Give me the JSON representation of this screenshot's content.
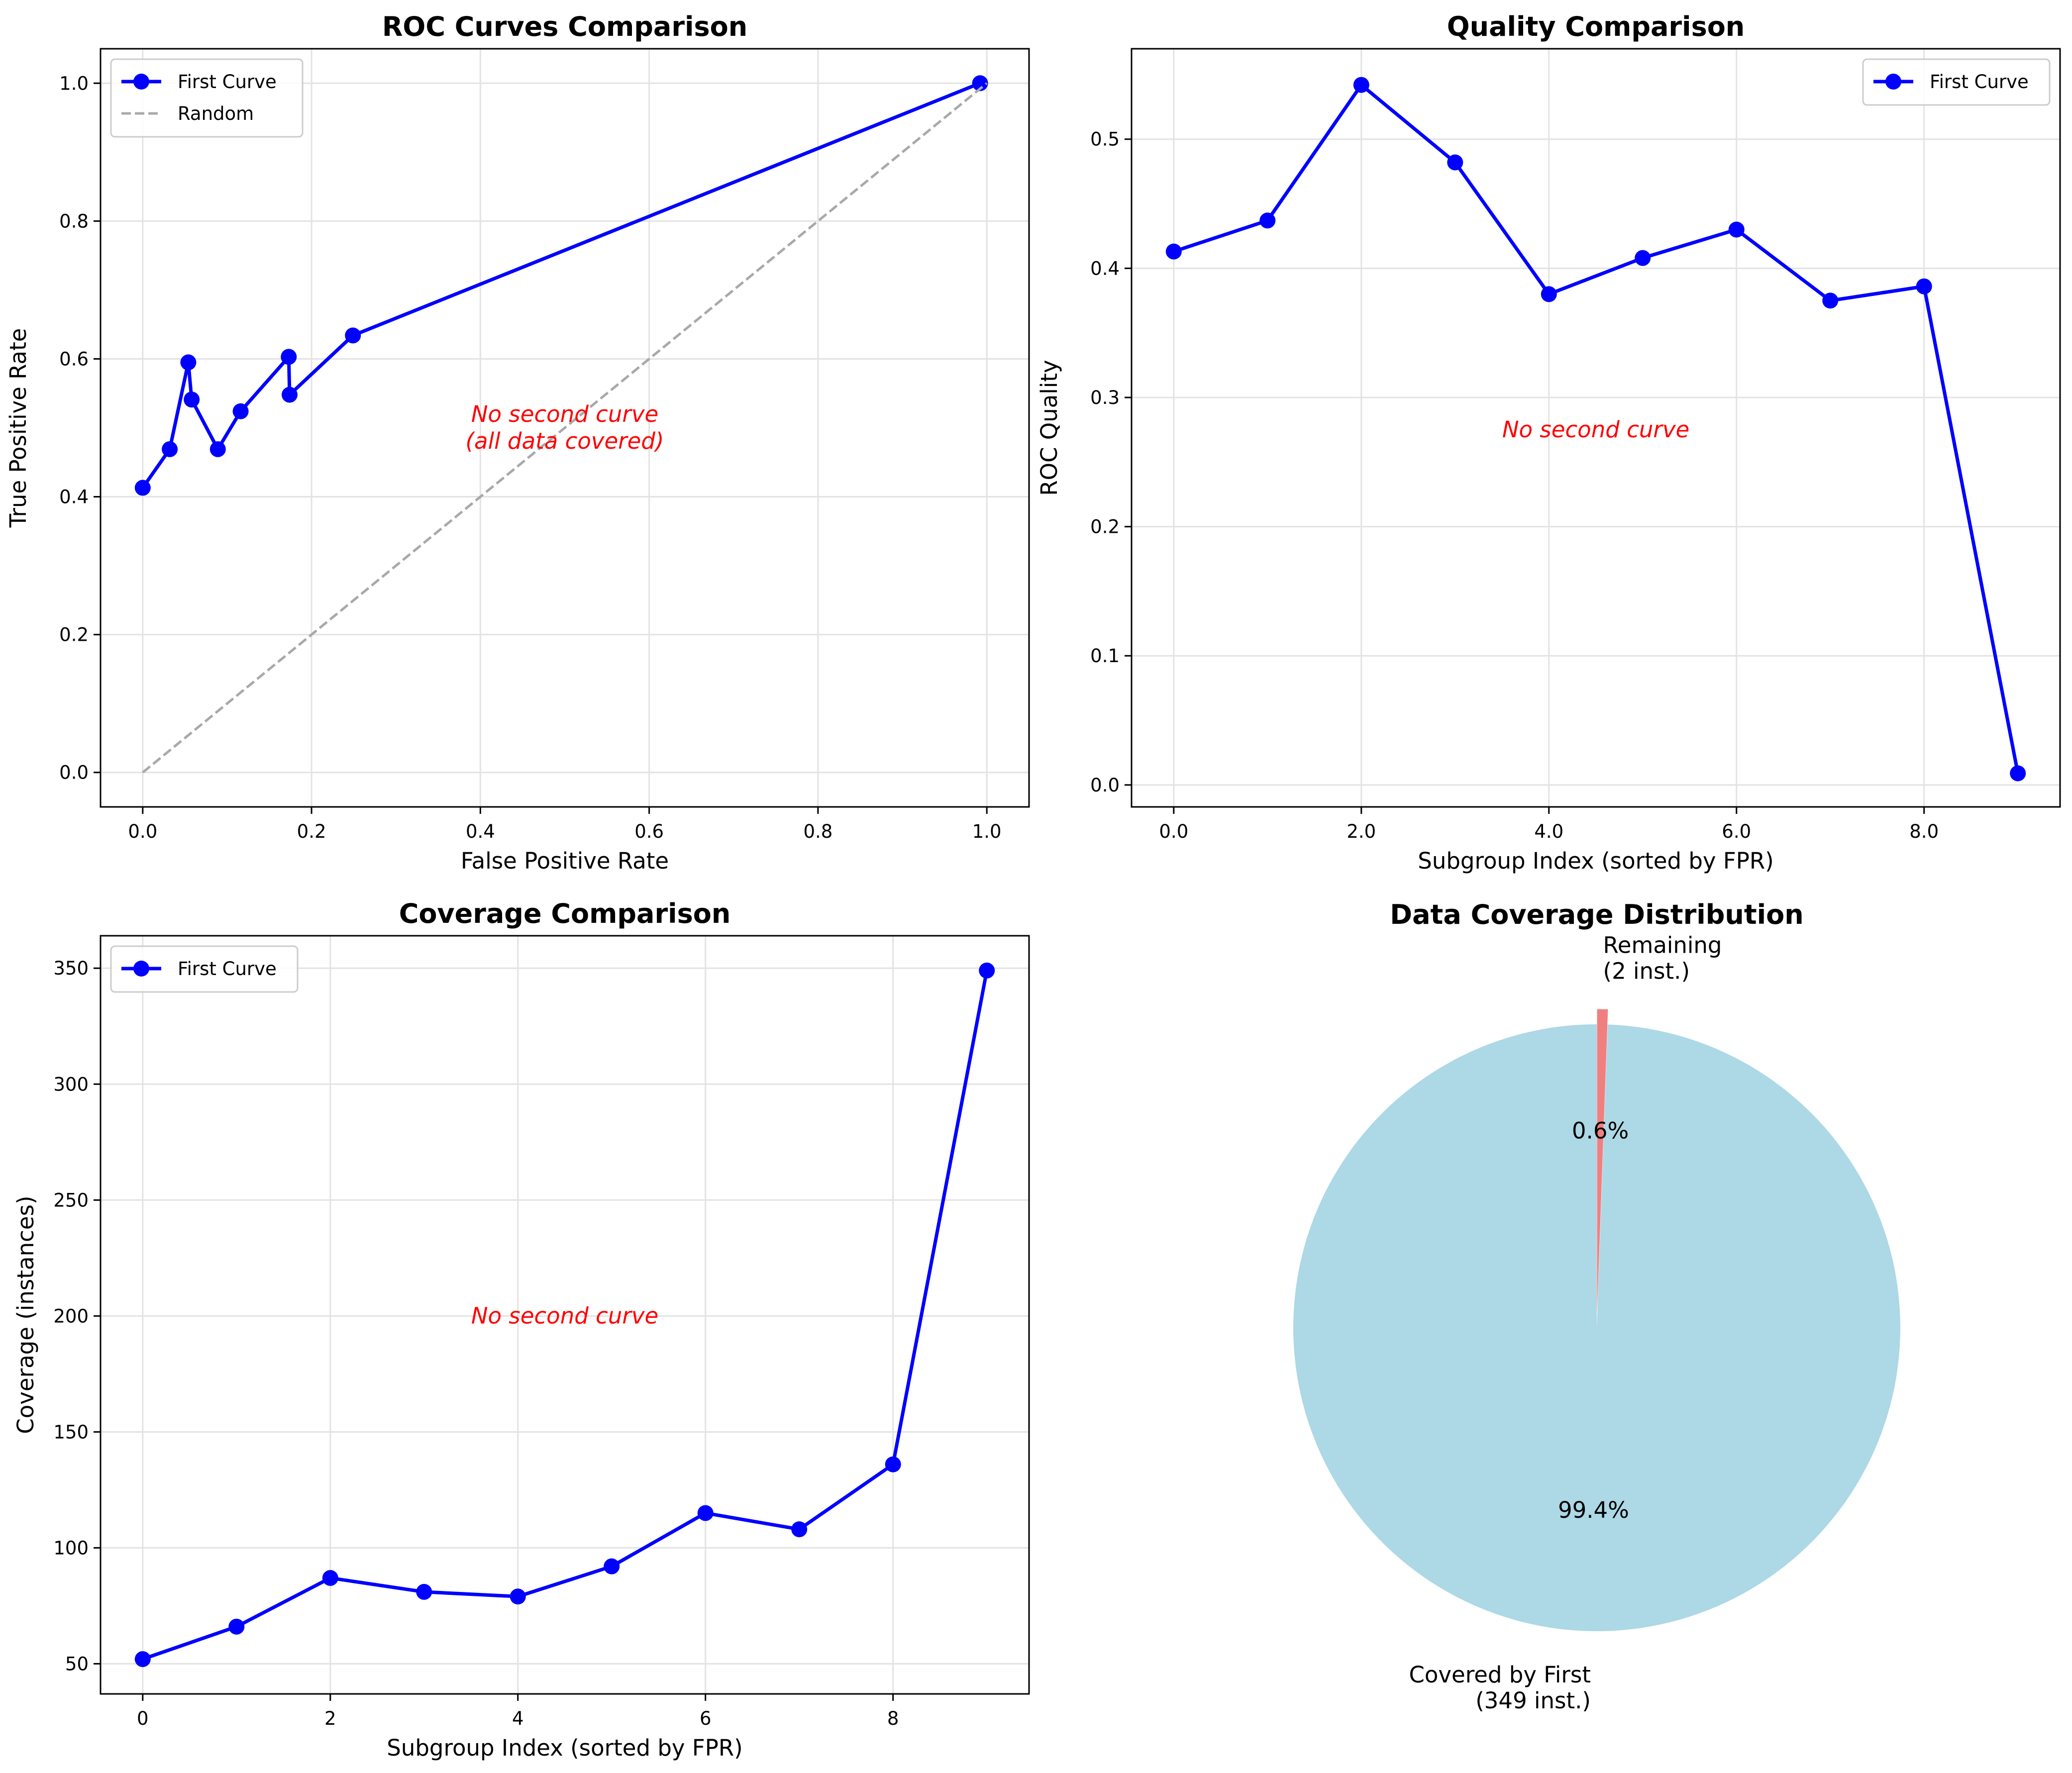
{
  "chart_data": [
    {
      "id": "roc",
      "type": "line",
      "title": "ROC Curves Comparison",
      "xlabel": "False Positive Rate",
      "ylabel": "True Positive Rate",
      "xlim": [
        -0.05,
        1.05
      ],
      "ylim": [
        -0.05,
        1.05
      ],
      "xticks": [
        0.0,
        0.2,
        0.4,
        0.6,
        0.8,
        1.0
      ],
      "yticks": [
        0.0,
        0.2,
        0.4,
        0.6,
        0.8,
        1.0
      ],
      "tick_decimals": 1,
      "grid": true,
      "legend": "top-left",
      "series": [
        {
          "name": "First Curve",
          "style": "line-marker",
          "color": "#0000ff",
          "x": [
            0.0,
            0.032,
            0.054,
            0.058,
            0.089,
            0.116,
            0.173,
            0.174,
            0.249,
            0.992
          ],
          "y": [
            0.413,
            0.469,
            0.595,
            0.541,
            0.469,
            0.524,
            0.603,
            0.548,
            0.634,
            1.0
          ]
        },
        {
          "name": "Random",
          "style": "dashed",
          "color": "#a9a9a9",
          "x": [
            0.0,
            1.0
          ],
          "y": [
            0.0,
            1.0
          ]
        }
      ],
      "annotation": {
        "lines": [
          "No second curve",
          "(all data covered)"
        ],
        "x": 0.5,
        "y": 0.5,
        "color": "#ff0000"
      }
    },
    {
      "id": "quality",
      "type": "line",
      "title": "Quality Comparison",
      "xlabel": "Subgroup Index (sorted by FPR)",
      "ylabel": "ROC Quality",
      "xlim": [
        -0.45,
        9.45
      ],
      "ylim": [
        -0.017,
        0.57
      ],
      "xticks": [
        0,
        2,
        4,
        6,
        8
      ],
      "yticks": [
        0.0,
        0.1,
        0.2,
        0.3,
        0.4,
        0.5
      ],
      "tick_decimals": 1,
      "grid": true,
      "legend": "top-right",
      "series": [
        {
          "name": "First Curve",
          "style": "line-marker",
          "color": "#0000ff",
          "x": [
            0,
            1,
            2,
            3,
            4,
            5,
            6,
            7,
            8,
            9
          ],
          "y": [
            0.413,
            0.437,
            0.542,
            0.482,
            0.38,
            0.408,
            0.43,
            0.375,
            0.386,
            0.009
          ]
        }
      ],
      "annotation": {
        "lines": [
          "No second curve"
        ],
        "x": 4.5,
        "y": 0.275,
        "color": "#ff0000"
      }
    },
    {
      "id": "coverage",
      "type": "line",
      "title": "Coverage Comparison",
      "xlabel": "Subgroup Index (sorted by FPR)",
      "ylabel": "Coverage (instances)",
      "xlim": [
        -0.45,
        9.45
      ],
      "ylim": [
        37,
        364
      ],
      "xticks": [
        0,
        2,
        4,
        6,
        8
      ],
      "yticks": [
        50,
        100,
        150,
        200,
        250,
        300,
        350
      ],
      "tick_decimals": 0,
      "grid": true,
      "legend": "top-left",
      "series": [
        {
          "name": "First Curve",
          "style": "line-marker",
          "color": "#0000ff",
          "x": [
            0,
            1,
            2,
            3,
            4,
            5,
            6,
            7,
            8,
            9
          ],
          "y": [
            52,
            66,
            87,
            81,
            79,
            92,
            115,
            108,
            136,
            349
          ]
        }
      ],
      "annotation": {
        "lines": [
          "No second curve"
        ],
        "x": 4.5,
        "y": 200,
        "color": "#ff0000"
      }
    },
    {
      "id": "pie",
      "type": "pie",
      "title": "Data Coverage Distribution",
      "slices": [
        {
          "label_lines": [
            "Covered by First",
            "(349 inst.)"
          ],
          "value": 349,
          "pct": "99.4%",
          "color": "#add8e6"
        },
        {
          "label_lines": [
            "Remaining",
            "(2 inst.)"
          ],
          "value": 2,
          "pct": "0.6%",
          "color": "#f08080"
        }
      ]
    }
  ]
}
